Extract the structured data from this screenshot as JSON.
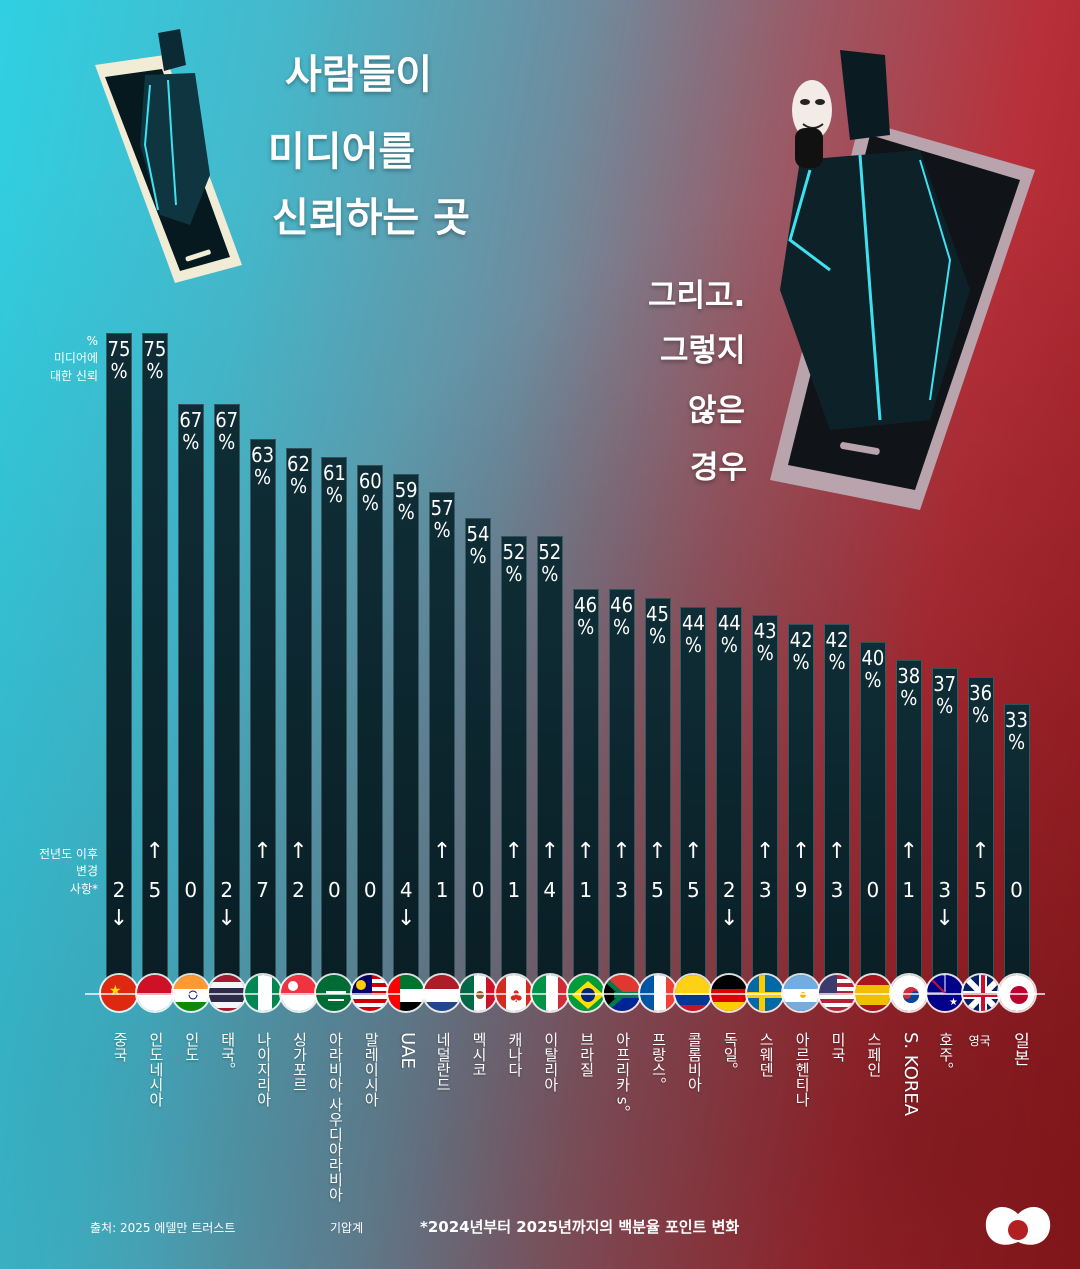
{
  "headline": {
    "line1": "사람들이",
    "line2": "미디어를",
    "line3": "신뢰하는 곳"
  },
  "subline": {
    "line1": "그리고.",
    "line2": "그렇지",
    "line3": "않은",
    "line4": "경우"
  },
  "yaxis": {
    "label1": "%",
    "label2": "미디어에",
    "label3": "대한 신뢰"
  },
  "change_label": {
    "line1": "전년도 이후",
    "line2": "변경",
    "line3": "사항*"
  },
  "footer": {
    "source": "출처: 2025 에델만 트러스트",
    "credit": "기압계",
    "note": "*2024년부터 2025년까지의 백분율 포인트 변화"
  },
  "colors": {
    "bar": "#0c2630",
    "left_bg": "#2fd0e2",
    "right_bg": "#a01d22"
  },
  "chart_data": {
    "type": "bar",
    "ylabel": "% 미디어에 대한 신뢰",
    "categories": [
      "중국",
      "인도네시아",
      "인도",
      "태국。",
      "나이지리아",
      "싱가포르",
      "아라비아 사우디아라비아",
      "말레이시아",
      "UAE",
      "네덜란드",
      "멕시코",
      "캐나다",
      "이탈리아",
      "브라질",
      "아프리카 s。",
      "프랑스。",
      "콜롬비아",
      "독일。",
      "스웨덴",
      "아르헨티나",
      "미국",
      "스페인",
      "S. KOREA",
      "호주。",
      "영국",
      "일본"
    ],
    "series": [
      {
        "name": "% 미디어에 대한 신뢰",
        "values": [
          75,
          75,
          67,
          67,
          63,
          62,
          61,
          60,
          59,
          57,
          54,
          52,
          52,
          46,
          46,
          45,
          44,
          44,
          43,
          42,
          42,
          40,
          38,
          37,
          36,
          33
        ]
      },
      {
        "name": "전년도 이후 변경 사항*",
        "values": [
          -2,
          5,
          0,
          -2,
          7,
          2,
          0,
          0,
          -4,
          1,
          0,
          1,
          4,
          1,
          3,
          5,
          5,
          -2,
          3,
          9,
          3,
          0,
          1,
          -3,
          5,
          0
        ]
      }
    ],
    "value_suffix": "%",
    "flags": [
      "china",
      "indonesia",
      "india",
      "thailand",
      "nigeria",
      "singapore",
      "saudi",
      "malaysia",
      "uae",
      "netherlands",
      "mexico",
      "canada",
      "italy",
      "brazil",
      "southafrica",
      "france",
      "colombia",
      "germany",
      "sweden",
      "argentina",
      "usa",
      "spain",
      "korea",
      "australia",
      "uk",
      "japan"
    ]
  }
}
